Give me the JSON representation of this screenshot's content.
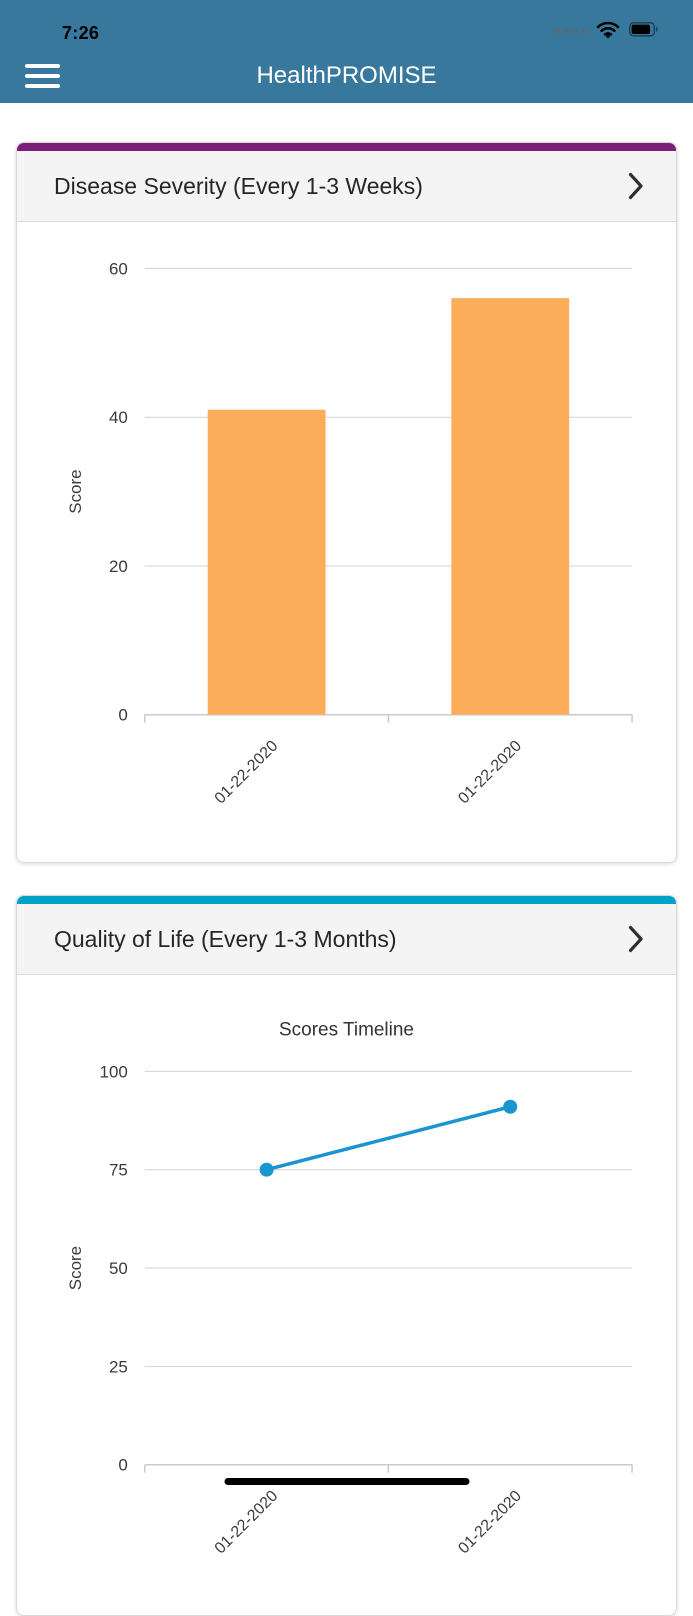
{
  "status_bar": {
    "time": "7:26"
  },
  "header": {
    "title": "HealthPROMISE"
  },
  "cards": [
    {
      "title": "Disease Severity (Every 1-3 Weeks)",
      "accent_color": "#7b1e7a"
    },
    {
      "title": "Quality of Life (Every 1-3 Months)",
      "accent_color": "#00a3c7"
    }
  ],
  "chart_data": [
    {
      "type": "bar",
      "title": "",
      "ylabel": "Score",
      "xlabel": "",
      "categories": [
        "01-22-2020",
        "01-22-2020"
      ],
      "values": [
        41,
        56
      ],
      "ylim": [
        0,
        60
      ],
      "yticks": [
        0,
        20,
        40,
        60
      ],
      "grid": true,
      "legend": false,
      "colors": {
        "bar": "#fbad59"
      }
    },
    {
      "type": "line",
      "title": "Scores Timeline",
      "ylabel": "Score",
      "xlabel": "",
      "categories": [
        "01-22-2020",
        "01-22-2020"
      ],
      "values": [
        75,
        91
      ],
      "ylim": [
        0,
        100
      ],
      "yticks": [
        0,
        25,
        50,
        75,
        100
      ],
      "grid": true,
      "legend": false,
      "colors": {
        "line": "#1b95d1"
      }
    }
  ],
  "colors": {
    "header_bg": "#37789c",
    "card_header_bg": "#f4f4f4",
    "grid_line": "#d2d2d2",
    "axis_line": "#c3cbd3",
    "axis_text": "#3a3a3a"
  }
}
